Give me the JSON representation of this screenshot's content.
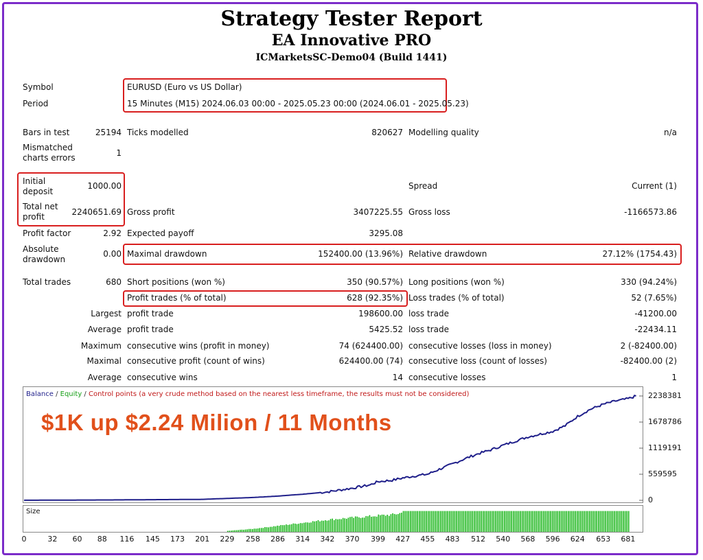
{
  "header": {
    "title": "Strategy Tester Report",
    "ea_name": "EA Innovative PRO",
    "server": "ICMarketsSC-Demo04 (Build 1441)"
  },
  "report": {
    "symbol_label": "Symbol",
    "symbol_value": "EURUSD (Euro vs US Dollar)",
    "period_label": "Period",
    "period_value": "15 Minutes (M15) 2024.06.03 00:00 - 2025.05.23 00:00 (2024.06.01 - 2025.05.23)",
    "bars_label": "Bars in test",
    "bars_value": "25194",
    "ticks_label": "Ticks modelled",
    "ticks_value": "820627",
    "quality_label": "Modelling quality",
    "quality_value": "n/a",
    "mismatch_label_1": "Mismatched",
    "mismatch_label_2": "charts errors",
    "mismatch_value": "1",
    "deposit_label_1": "Initial",
    "deposit_label_2": "deposit",
    "deposit_value": "1000.00",
    "spread_label": "Spread",
    "spread_value": "Current (1)",
    "netprofit_label_1": "Total net",
    "netprofit_label_2": "profit",
    "netprofit_value": "2240651.69",
    "grossprofit_label": "Gross profit",
    "grossprofit_value": "3407225.55",
    "grossloss_label": "Gross loss",
    "grossloss_value": "-1166573.86",
    "pf_label": "Profit factor",
    "pf_value": "2.92",
    "payoff_label": "Expected payoff",
    "payoff_value": "3295.08",
    "absdd_label_1": "Absolute",
    "absdd_label_2": "drawdown",
    "absdd_value": "0.00",
    "maxdd_label": "Maximal drawdown",
    "maxdd_value": "152400.00 (13.96%)",
    "reldd_label": "Relative drawdown",
    "reldd_value": "27.12% (1754.43)",
    "trades_label": "Total trades",
    "trades_value": "680",
    "short_label": "Short positions (won %)",
    "short_value": "350 (90.57%)",
    "long_label": "Long positions (won %)",
    "long_value": "330 (94.24%)",
    "pt_label": "Profit trades (% of total)",
    "pt_value": "628 (92.35%)",
    "lt_label": "Loss trades (% of total)",
    "lt_value": "52 (7.65%)",
    "largest_label": "Largest",
    "largest_pt_label": "profit trade",
    "largest_pt_value": "198600.00",
    "largest_lt_label": "loss trade",
    "largest_lt_value": "-41200.00",
    "average_label": "Average",
    "average_pt_label": "profit trade",
    "average_pt_value": "5425.52",
    "average_lt_label": "loss trade",
    "average_lt_value": "-22434.11",
    "maximum_label": "Maximum",
    "max_cw_label": "consecutive wins (profit in money)",
    "max_cw_value": "74 (624400.00)",
    "max_cl_label": "consecutive losses (loss in money)",
    "max_cl_value": "2 (-82400.00)",
    "maximal_label": "Maximal",
    "mxl_cp_label": "consecutive profit (count of wins)",
    "mxl_cp_value": "624400.00 (74)",
    "mxl_cl_label": "consecutive loss (count of losses)",
    "mxl_cl_value": "-82400.00 (2)",
    "avg2_label": "Average",
    "avg_cw_label": "consecutive wins",
    "avg_cw_value": "14",
    "avg_cl_label": "consecutive losses",
    "avg_cl_value": "1"
  },
  "chart": {
    "legend_balance": "Balance",
    "legend_sep1": " / ",
    "legend_equity": "Equity",
    "legend_sep2": " / ",
    "legend_control": "Control points (a very crude method based on the nearest less timeframe, the results must not be considered)",
    "overlay_text": "$1K up $2.24 Milion / 11 Months",
    "size_label": "Size",
    "balance_color": "#1f1f8a",
    "size_color": "#17b517",
    "overlay_color": "#e1501b"
  },
  "chart_data": {
    "type": "line",
    "y_ticks": [
      "2238381",
      "1678786",
      "1119191",
      "559595",
      "0"
    ],
    "y_tick_values": [
      2238381,
      1678786,
      1119191,
      559595,
      0
    ],
    "x_ticks": [
      "0",
      "32",
      "60",
      "88",
      "116",
      "145",
      "173",
      "201",
      "229",
      "258",
      "286",
      "314",
      "342",
      "370",
      "399",
      "427",
      "455",
      "483",
      "512",
      "540",
      "568",
      "596",
      "624",
      "653",
      "681"
    ],
    "xlim": [
      0,
      695
    ],
    "ylim": [
      0,
      2300000
    ],
    "series": [
      {
        "name": "Balance",
        "x": [
          0,
          100,
          200,
          229,
          258,
          286,
          314,
          342,
          370,
          390,
          399,
          415,
          427,
          440,
          455,
          470,
          483,
          498,
          512,
          526,
          540,
          554,
          568,
          582,
          596,
          610,
          624,
          638,
          653,
          667,
          681,
          690
        ],
        "values": [
          1000,
          8000,
          20000,
          40000,
          60000,
          90000,
          130000,
          180000,
          260000,
          330000,
          400000,
          430000,
          480000,
          520000,
          560000,
          680000,
          780000,
          900000,
          1000000,
          1080000,
          1180000,
          1270000,
          1360000,
          1420000,
          1480000,
          1600000,
          1800000,
          1950000,
          2060000,
          2130000,
          2180000,
          2238381
        ]
      }
    ],
    "size_series": {
      "name": "Size",
      "x": [
        229,
        258,
        286,
        314,
        342,
        370,
        399,
        415,
        427,
        681
      ],
      "relative_height": [
        0.05,
        0.15,
        0.3,
        0.45,
        0.6,
        0.7,
        0.8,
        0.85,
        0.95,
        0.95
      ]
    }
  }
}
